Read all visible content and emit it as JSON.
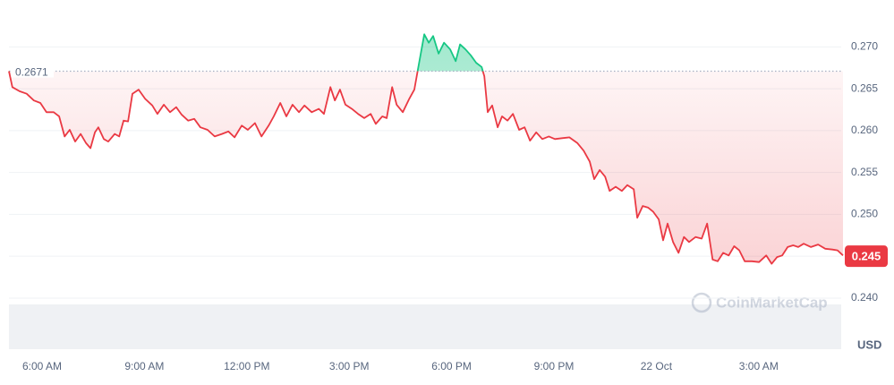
{
  "chart_data": {
    "type": "line",
    "x": [
      5.03,
      5.13,
      5.34,
      5.55,
      5.76,
      5.95,
      6.13,
      6.34,
      6.5,
      6.66,
      6.81,
      6.97,
      7.13,
      7.29,
      7.42,
      7.55,
      7.65,
      7.81,
      7.94,
      8.13,
      8.26,
      8.39,
      8.52,
      8.65,
      8.83,
      9.02,
      9.23,
      9.38,
      9.57,
      9.75,
      9.93,
      10.09,
      10.28,
      10.46,
      10.64,
      10.85,
      11.06,
      11.27,
      11.46,
      11.64,
      11.85,
      12.03,
      12.24,
      12.43,
      12.64,
      12.79,
      12.98,
      13.16,
      13.34,
      13.53,
      13.69,
      13.9,
      14.11,
      14.26,
      14.45,
      14.58,
      14.73,
      14.89,
      15.08,
      15.26,
      15.44,
      15.63,
      15.78,
      15.97,
      16.1,
      16.26,
      16.39,
      16.57,
      16.76,
      16.91,
      17.04,
      17.2,
      17.33,
      17.46,
      17.62,
      17.78,
      17.96,
      18.12,
      18.25,
      18.41,
      18.56,
      18.72,
      18.88,
      18.96,
      19.06,
      19.19,
      19.35,
      19.48,
      19.64,
      19.8,
      19.98,
      20.14,
      20.3,
      20.48,
      20.66,
      20.85,
      21.03,
      21.24,
      21.45,
      21.69,
      21.87,
      22.05,
      22.18,
      22.34,
      22.5,
      22.63,
      22.81,
      22.99,
      23.15,
      23.34,
      23.44,
      23.6,
      23.76,
      23.91,
      24.07,
      24.2,
      24.33,
      24.49,
      24.65,
      24.81,
      24.96,
      25.15,
      25.33,
      25.49,
      25.65,
      25.8,
      25.96,
      26.12,
      26.28,
      26.43,
      26.59,
      26.8,
      27.01,
      27.22,
      27.38,
      27.54,
      27.69,
      27.85,
      28.01,
      28.16,
      28.32,
      28.53,
      28.74,
      28.95,
      29.16,
      29.31,
      29.47
    ],
    "series": [
      {
        "values": [
          0.2671,
          0.2652,
          0.2647,
          0.2644,
          0.2636,
          0.2633,
          0.2622,
          0.2622,
          0.2617,
          0.2593,
          0.2601,
          0.2587,
          0.2596,
          0.2585,
          0.2579,
          0.2598,
          0.2604,
          0.259,
          0.2587,
          0.2596,
          0.2593,
          0.2612,
          0.2611,
          0.2644,
          0.2649,
          0.2638,
          0.263,
          0.262,
          0.2631,
          0.2622,
          0.2628,
          0.2619,
          0.2612,
          0.2614,
          0.2604,
          0.2601,
          0.2593,
          0.2596,
          0.2599,
          0.2592,
          0.2606,
          0.2601,
          0.2609,
          0.2593,
          0.2606,
          0.2617,
          0.2633,
          0.2617,
          0.2631,
          0.2622,
          0.263,
          0.2622,
          0.2626,
          0.262,
          0.2652,
          0.2636,
          0.2649,
          0.2631,
          0.2626,
          0.262,
          0.2615,
          0.262,
          0.2608,
          0.2617,
          0.2615,
          0.2652,
          0.2631,
          0.2622,
          0.2638,
          0.2649,
          0.2679,
          0.2715,
          0.2705,
          0.2713,
          0.2692,
          0.2705,
          0.2697,
          0.2683,
          0.2703,
          0.2697,
          0.269,
          0.2681,
          0.2676,
          0.2665,
          0.2622,
          0.263,
          0.2604,
          0.2617,
          0.2612,
          0.262,
          0.2601,
          0.2604,
          0.2588,
          0.2598,
          0.259,
          0.2593,
          0.259,
          0.2591,
          0.2592,
          0.2585,
          0.2576,
          0.2563,
          0.2542,
          0.2553,
          0.2545,
          0.2528,
          0.2533,
          0.2528,
          0.2535,
          0.253,
          0.2496,
          0.251,
          0.2508,
          0.2503,
          0.2494,
          0.2469,
          0.2489,
          0.2467,
          0.2454,
          0.2473,
          0.2467,
          0.2473,
          0.2471,
          0.2489,
          0.2446,
          0.2444,
          0.2454,
          0.2451,
          0.2462,
          0.2457,
          0.2444,
          0.2444,
          0.2443,
          0.2451,
          0.2441,
          0.2449,
          0.2451,
          0.2461,
          0.2463,
          0.2461,
          0.2465,
          0.2461,
          0.2464,
          0.2459,
          0.2458,
          0.2457,
          0.2451
        ]
      }
    ],
    "up_color": "#16c784",
    "down_color": "#ea3943",
    "baseline": 0.2671,
    "last_price": 0.245,
    "xlim": [
      5.03,
      29.47
    ],
    "xticks": [
      {
        "value": 6,
        "label": "6:00 AM"
      },
      {
        "value": 9,
        "label": "9:00 AM"
      },
      {
        "value": 12,
        "label": "12:00 PM"
      },
      {
        "value": 15,
        "label": "3:00 PM"
      },
      {
        "value": 18,
        "label": "6:00 PM"
      },
      {
        "value": 21,
        "label": "9:00 PM"
      },
      {
        "value": 24,
        "label": "22 Oct"
      },
      {
        "value": 27,
        "label": "3:00 AM"
      }
    ],
    "ylim": [
      0.2339,
      0.2756
    ],
    "yticks": [
      {
        "value": 0.24,
        "label": "0.240"
      },
      0.245,
      {
        "value": 0.25,
        "label": "0.250"
      },
      0.255,
      {
        "value": 0.26,
        "label": "0.260"
      },
      0.265,
      {
        "value": 0.27,
        "label": "0.270"
      }
    ],
    "grid": true,
    "unit": "USD",
    "watermark": "CoinMarketCap"
  }
}
